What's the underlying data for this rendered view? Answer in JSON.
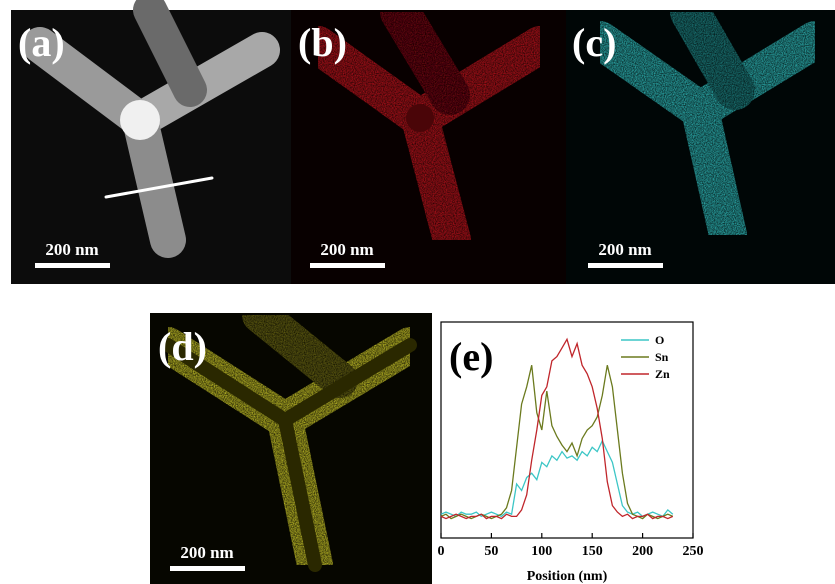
{
  "panels": [
    {
      "label": "(a)",
      "scale_bar": "200 nm"
    },
    {
      "label": "(b)",
      "scale_bar": "200 nm"
    },
    {
      "label": "(c)",
      "scale_bar": "200 nm"
    },
    {
      "label": "(d)",
      "scale_bar": "200 nm"
    }
  ],
  "chart_data": {
    "type": "line",
    "panel_label": "(e)",
    "x_label": "Position (nm)",
    "x": [
      0,
      5,
      10,
      15,
      20,
      25,
      30,
      35,
      40,
      45,
      50,
      55,
      60,
      65,
      70,
      75,
      80,
      85,
      90,
      95,
      100,
      105,
      110,
      115,
      120,
      125,
      130,
      135,
      140,
      145,
      150,
      155,
      160,
      165,
      170,
      175,
      180,
      185,
      190,
      195,
      200,
      205,
      210,
      215,
      220,
      225,
      230
    ],
    "series": [
      {
        "name": "O",
        "color": "#3cc6c6",
        "values": [
          11,
          12,
          11,
          10,
          12,
          11,
          11,
          12,
          10,
          11,
          12,
          11,
          10,
          12,
          11,
          25,
          22,
          28,
          30,
          27,
          35,
          33,
          38,
          36,
          40,
          37,
          38,
          36,
          40,
          38,
          42,
          40,
          45,
          40,
          35,
          25,
          15,
          12,
          11,
          12,
          10,
          11,
          12,
          11,
          10,
          13,
          11
        ]
      },
      {
        "name": "Sn",
        "color": "#6b7a1e",
        "values": [
          10,
          11,
          9,
          10,
          11,
          10,
          9,
          10,
          11,
          10,
          9,
          10,
          11,
          14,
          22,
          42,
          62,
          70,
          80,
          58,
          50,
          68,
          52,
          47,
          43,
          40,
          44,
          38,
          46,
          50,
          52,
          56,
          66,
          80,
          70,
          50,
          30,
          16,
          11,
          10,
          9,
          11,
          10,
          9,
          10,
          11,
          10
        ]
      },
      {
        "name": "Zn",
        "color": "#c0262b",
        "values": [
          10,
          9,
          10,
          11,
          10,
          9,
          10,
          10,
          11,
          9,
          10,
          10,
          9,
          11,
          10,
          10,
          13,
          20,
          36,
          50,
          66,
          70,
          82,
          84,
          88,
          92,
          84,
          90,
          80,
          76,
          70,
          60,
          46,
          26,
          15,
          12,
          10,
          11,
          9,
          10,
          10,
          11,
          9,
          10,
          10,
          9,
          10
        ]
      }
    ],
    "xlim": [
      0,
      250
    ],
    "xticks": [
      0,
      50,
      100,
      150,
      200,
      250
    ],
    "ylim": [
      0,
      100
    ],
    "legend": "upper-right"
  }
}
